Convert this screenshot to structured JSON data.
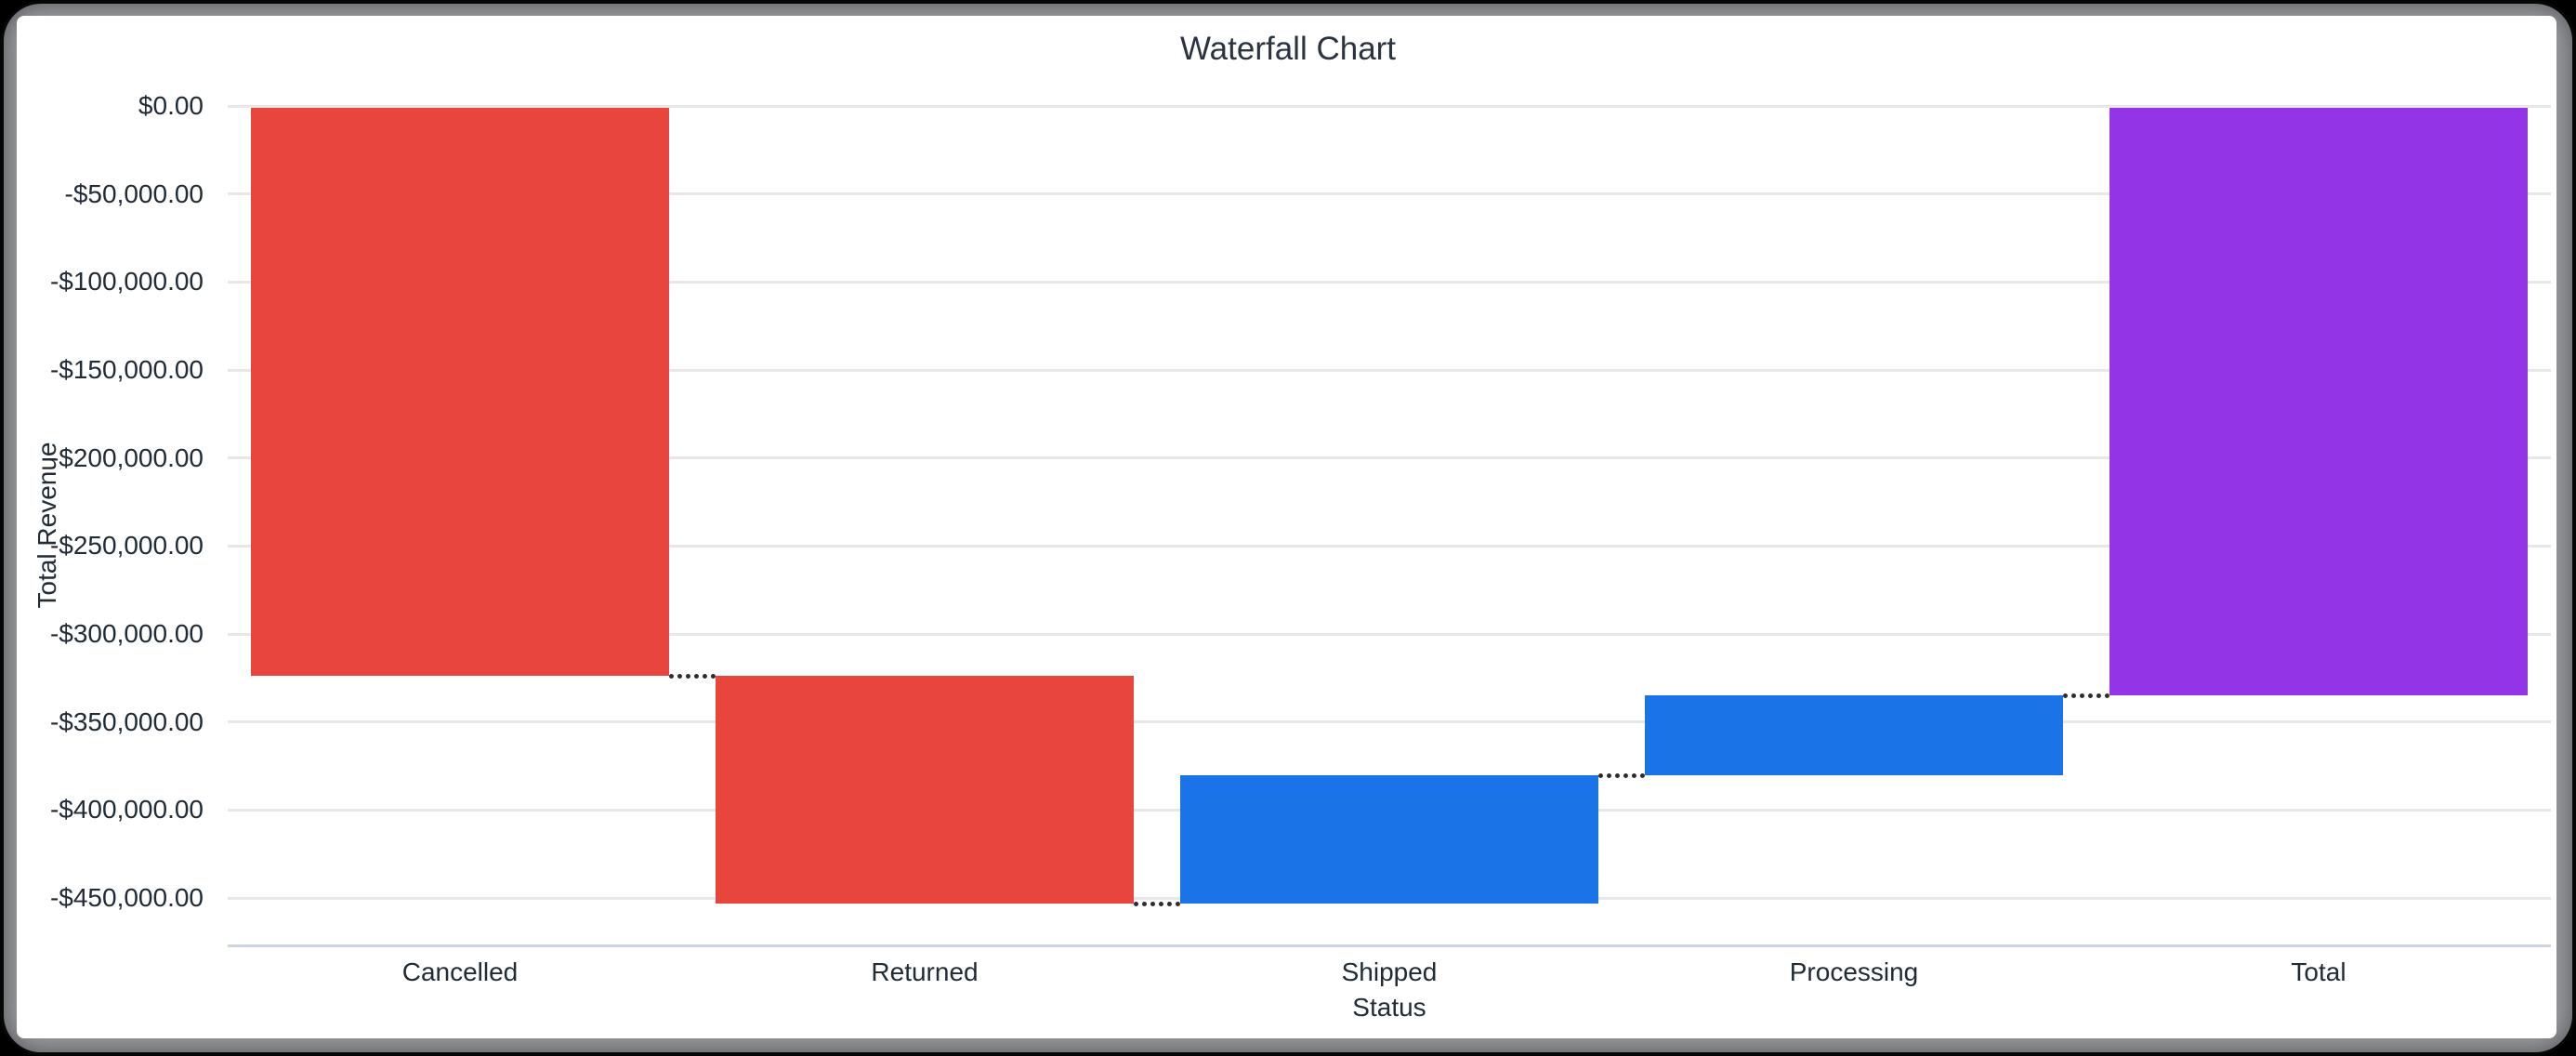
{
  "theme": {
    "outer_background": "#060606",
    "frame_border_color": "#97999d",
    "card_background": "#ffffff",
    "title_color": "#2b333e",
    "label_color": "#212b36",
    "gridline_color": "#e7e7e7",
    "baseline_color": "#ccd3e3",
    "connector_color": "#2e2e2e"
  },
  "chart": {
    "title": "Waterfall Chart",
    "x_axis_title": "Status",
    "y_axis_title": "Total Revenue"
  },
  "chart_data": {
    "type": "bar",
    "subtype": "waterfall",
    "title": "Waterfall Chart",
    "xlabel": "Status",
    "ylabel": "Total Revenue",
    "categories": [
      "Cancelled",
      "Returned",
      "Shipped",
      "Processing",
      "Total"
    ],
    "values": [
      -323800,
      -129400,
      72900,
      45400,
      -334900
    ],
    "bar_kinds": [
      "negative",
      "negative",
      "positive",
      "positive",
      "total"
    ],
    "cumulative_start": [
      0,
      -323800,
      -453200,
      -380300,
      0
    ],
    "cumulative_end": [
      -323800,
      -453200,
      -380300,
      -334900,
      -334900
    ],
    "colors": {
      "negative": "#e8453c",
      "positive": "#1b73e8",
      "total": "#9334e6"
    },
    "y_ticks": [
      {
        "value": 0,
        "label": "$0.00"
      },
      {
        "value": -50000,
        "label": "-$50,000.00"
      },
      {
        "value": -100000,
        "label": "-$100,000.00"
      },
      {
        "value": -150000,
        "label": "-$150,000.00"
      },
      {
        "value": -200000,
        "label": "-$200,000.00"
      },
      {
        "value": -250000,
        "label": "-$250,000.00"
      },
      {
        "value": -300000,
        "label": "-$300,000.00"
      },
      {
        "value": -350000,
        "label": "-$350,000.00"
      },
      {
        "value": -400000,
        "label": "-$400,000.00"
      },
      {
        "value": -450000,
        "label": "-$450,000.00"
      }
    ],
    "ylim": [
      -477000,
      0
    ],
    "grid": true,
    "legend": "none",
    "connector_style": "dotted"
  }
}
